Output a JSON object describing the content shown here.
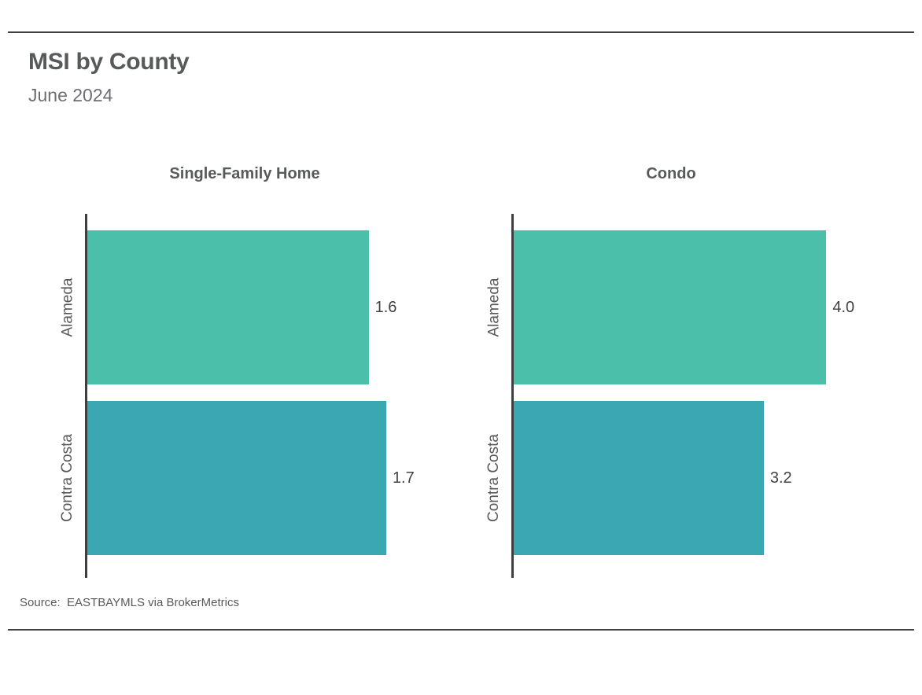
{
  "header": {
    "title": "MSI by County",
    "subtitle": "June 2024"
  },
  "source_note": "Source:  EASTBAYMLS via BrokerMetrics",
  "colors": {
    "alameda_bar": "#4cbfab",
    "contra_costa_bar": "#3aa7b3",
    "axis_line": "#3f3f3f",
    "title_text": "#58595b",
    "subtitle_text": "#6d6e71",
    "value_text": "#414042",
    "rule": "#404040"
  },
  "chart_data": [
    {
      "type": "bar",
      "orientation": "horizontal",
      "title": "Single-Family Home",
      "categories": [
        "Alameda",
        "Contra Costa"
      ],
      "values": [
        1.6,
        1.7
      ],
      "value_labels": [
        "1.6",
        "1.7"
      ],
      "xlim": [
        0,
        2.0
      ],
      "bar_colors": [
        "#4cbfab",
        "#3aa7b3"
      ],
      "grid": false,
      "legend": "none"
    },
    {
      "type": "bar",
      "orientation": "horizontal",
      "title": "Condo",
      "categories": [
        "Alameda",
        "Contra Costa"
      ],
      "values": [
        4.0,
        3.2
      ],
      "value_labels": [
        "4.0",
        "3.2"
      ],
      "xlim": [
        0,
        4.5
      ],
      "bar_colors": [
        "#4cbfab",
        "#3aa7b3"
      ],
      "grid": false,
      "legend": "none"
    }
  ]
}
